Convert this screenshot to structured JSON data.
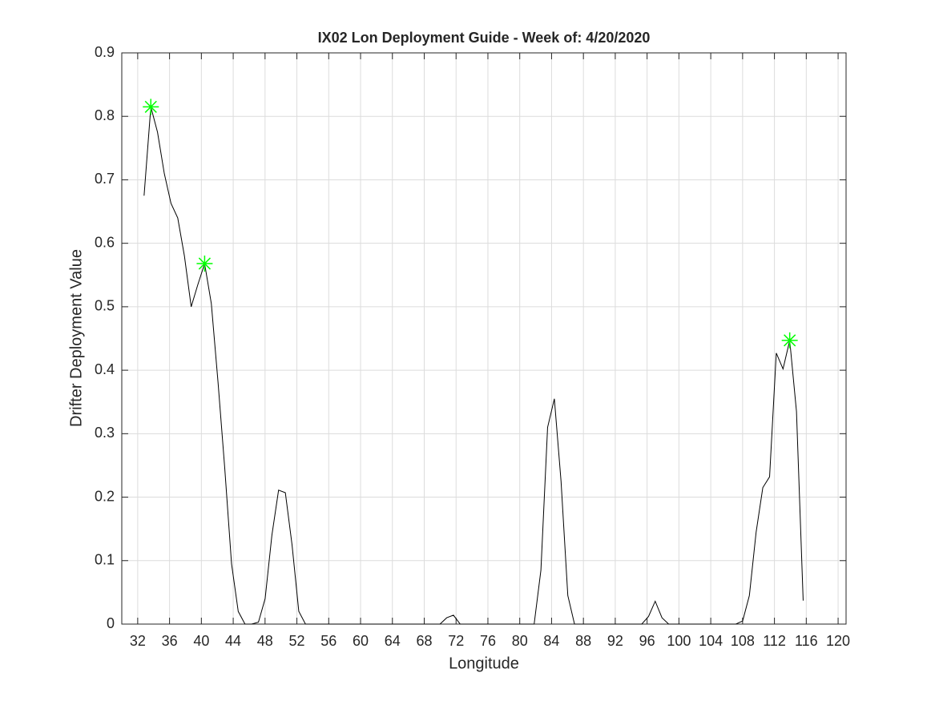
{
  "chart_data": {
    "type": "line",
    "title": "IX02 Lon Deployment Guide - Week of: 4/20/2020",
    "xlabel": "Longitude",
    "ylabel": "Drifter Deployment Value",
    "xlim": [
      30,
      121
    ],
    "ylim": [
      0,
      0.9
    ],
    "xticks": [
      32,
      36,
      40,
      44,
      48,
      52,
      56,
      60,
      64,
      68,
      72,
      76,
      80,
      84,
      88,
      92,
      96,
      100,
      104,
      108,
      112,
      116,
      120
    ],
    "yticks": [
      0,
      0.1,
      0.2,
      0.3,
      0.4,
      0.5,
      0.6,
      0.7,
      0.8,
      0.9
    ],
    "grid": true,
    "series": [
      {
        "color": "#000000",
        "marker": "none",
        "x": [
          32.8,
          33.65,
          34.49,
          35.34,
          36.18,
          37.03,
          37.87,
          38.72,
          39.56,
          40.41,
          41.25,
          42.1,
          42.94,
          43.79,
          44.63,
          45.48,
          46.32,
          47.17,
          48.01,
          48.86,
          49.7,
          50.55,
          51.39,
          52.24,
          53.08,
          53.93,
          54.77,
          55.62,
          56.46,
          57.31,
          58.15,
          59.0,
          59.84,
          60.69,
          61.53,
          62.38,
          63.22,
          64.07,
          64.91,
          65.76,
          66.6,
          67.45,
          68.29,
          69.14,
          69.98,
          70.83,
          71.67,
          72.52,
          73.36,
          74.21,
          75.05,
          75.9,
          76.74,
          77.59,
          78.43,
          79.28,
          80.12,
          80.97,
          81.81,
          82.66,
          83.5,
          84.35,
          85.19,
          86.04,
          86.88,
          87.73,
          88.57,
          89.42,
          90.26,
          91.11,
          91.95,
          92.8,
          93.64,
          94.49,
          95.33,
          96.18,
          97.02,
          97.87,
          98.71,
          99.56,
          100.4,
          101.25,
          102.09,
          102.94,
          103.78,
          104.63,
          105.47,
          106.32,
          107.16,
          108.01,
          108.85,
          109.7,
          110.54,
          111.39,
          112.23,
          113.08,
          113.92,
          114.77,
          115.61
        ],
        "values": [
          0.675,
          0.815,
          0.775,
          0.71,
          0.663,
          0.64,
          0.58,
          0.5,
          0.535,
          0.568,
          0.505,
          0.38,
          0.245,
          0.095,
          0.02,
          0,
          0,
          0.003,
          0.04,
          0.14,
          0.211,
          0.207,
          0.125,
          0.02,
          0,
          0,
          0,
          0,
          0,
          0,
          0,
          0,
          0,
          0,
          0,
          0,
          0,
          0,
          0,
          0,
          0,
          0,
          0,
          0,
          0,
          0.01,
          0.014,
          0,
          0,
          0,
          0,
          0,
          0,
          0,
          0,
          0,
          0,
          0,
          0,
          0.085,
          0.31,
          0.355,
          0.225,
          0.045,
          0,
          0,
          0,
          0,
          0,
          0,
          0,
          0,
          0,
          0,
          0,
          0.012,
          0.036,
          0.01,
          0,
          0,
          0,
          0,
          0,
          0,
          0,
          0,
          0,
          0,
          0,
          0.005,
          0.045,
          0.145,
          0.215,
          0.232,
          0.427,
          0.402,
          0.447,
          0.335,
          0.037
        ]
      },
      {
        "color": "#00ff00",
        "marker": "asterisk",
        "x": [
          33.65,
          40.41,
          113.92
        ],
        "values": [
          0.815,
          0.568,
          0.447
        ]
      }
    ]
  }
}
